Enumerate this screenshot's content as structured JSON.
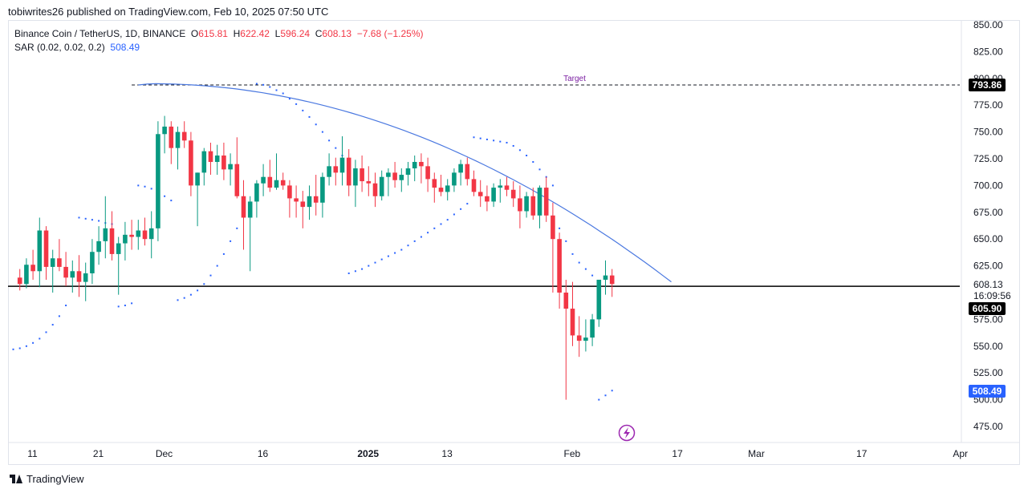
{
  "header": {
    "published": "tobiwrites26 published on TradingView.com, Feb 10, 2025 07:50 UTC"
  },
  "legend": {
    "symbol": "Binance Coin / TetherUS, 1D, BINANCE",
    "open_label": "O",
    "open": "615.81",
    "high_label": "H",
    "high": "622.42",
    "low_label": "L",
    "low": "596.24",
    "close_label": "C",
    "close": "608.13",
    "change": "−7.68 (−1.25%)",
    "indicator": "SAR (0.02, 0.02, 0.2)",
    "indicator_value": "508.49"
  },
  "footer": {
    "brand": "TradingView"
  },
  "colors": {
    "up": "#089981",
    "down": "#f23645",
    "sar": "#2962ff",
    "curve": "#4a78e0",
    "target": "#7b1fa2",
    "axis_text": "#131722"
  },
  "chart_data": {
    "type": "candlestick",
    "y_axis": {
      "ticks": [
        "850.00",
        "825.00",
        "800.00",
        "775.00",
        "750.00",
        "725.00",
        "700.00",
        "675.00",
        "650.00",
        "625.00",
        "575.00",
        "550.00",
        "525.00",
        "500.00",
        "475.00"
      ],
      "range": [
        460,
        860
      ]
    },
    "x_axis": {
      "labels": [
        {
          "text": "11",
          "day": 0
        },
        {
          "text": "21",
          "day": 10
        },
        {
          "text": "Dec",
          "day": 20
        },
        {
          "text": "16",
          "day": 35
        },
        {
          "text": "2025",
          "day": 51
        },
        {
          "text": "13",
          "day": 63
        },
        {
          "text": "Feb",
          "day": 82
        },
        {
          "text": "17",
          "day": 98
        },
        {
          "text": "Mar",
          "day": 110
        },
        {
          "text": "17",
          "day": 126
        },
        {
          "text": "Apr",
          "day": 141
        }
      ]
    },
    "price_labels": {
      "target_price": "793.86",
      "last_price": "608.13",
      "countdown": "16:09:56",
      "support_price": "605.90",
      "sar_price": "508.49"
    },
    "target": {
      "label": "Target",
      "price": 793.86,
      "from_day": 18
    },
    "support": {
      "price": 605.9
    },
    "candles": [
      [
        1,
        614,
        622,
        602,
        608
      ],
      [
        2,
        608,
        632,
        604,
        626
      ],
      [
        3,
        626,
        640,
        612,
        620
      ],
      [
        4,
        620,
        670,
        605,
        658
      ],
      [
        5,
        658,
        662,
        612,
        624
      ],
      [
        6,
        624,
        640,
        600,
        632
      ],
      [
        7,
        632,
        650,
        620,
        624
      ],
      [
        8,
        624,
        638,
        606,
        614
      ],
      [
        9,
        614,
        630,
        600,
        620
      ],
      [
        10,
        620,
        635,
        596,
        610
      ],
      [
        11,
        610,
        628,
        592,
        618
      ],
      [
        12,
        618,
        650,
        608,
        638
      ],
      [
        13,
        638,
        662,
        626,
        648
      ],
      [
        14,
        648,
        690,
        632,
        660
      ],
      [
        15,
        660,
        676,
        630,
        636
      ],
      [
        16,
        636,
        652,
        598,
        646
      ],
      [
        17,
        646,
        666,
        630,
        654
      ],
      [
        18,
        654,
        668,
        640,
        652
      ],
      [
        19,
        652,
        668,
        640,
        658
      ],
      [
        20,
        658,
        670,
        644,
        650
      ],
      [
        21,
        650,
        676,
        632,
        660
      ],
      [
        22,
        660,
        760,
        648,
        748
      ],
      [
        23,
        748,
        765,
        730,
        755
      ],
      [
        24,
        755,
        760,
        720,
        735
      ],
      [
        25,
        735,
        755,
        715,
        750
      ],
      [
        26,
        750,
        760,
        735,
        742
      ],
      [
        27,
        742,
        750,
        690,
        700
      ],
      [
        28,
        700,
        712,
        662,
        712
      ],
      [
        29,
        712,
        735,
        700,
        732
      ],
      [
        30,
        732,
        740,
        710,
        722
      ],
      [
        31,
        722,
        738,
        710,
        728
      ],
      [
        32,
        728,
        740,
        705,
        715
      ],
      [
        33,
        715,
        730,
        700,
        720
      ],
      [
        34,
        720,
        745,
        688,
        690
      ],
      [
        35,
        690,
        705,
        640,
        670
      ],
      [
        36,
        670,
        690,
        620,
        685
      ],
      [
        37,
        685,
        705,
        670,
        702
      ],
      [
        38,
        702,
        720,
        690,
        708
      ],
      [
        39,
        708,
        724,
        694,
        698
      ],
      [
        40,
        698,
        730,
        696,
        705
      ],
      [
        41,
        705,
        712,
        696,
        700
      ],
      [
        42,
        700,
        705,
        670,
        688
      ],
      [
        43,
        688,
        700,
        670,
        685
      ],
      [
        44,
        685,
        695,
        660,
        680
      ],
      [
        45,
        680,
        700,
        668,
        690
      ],
      [
        46,
        690,
        710,
        672,
        684
      ],
      [
        47,
        684,
        712,
        670,
        708
      ],
      [
        48,
        708,
        730,
        700,
        718
      ],
      [
        49,
        718,
        726,
        700,
        712
      ],
      [
        50,
        712,
        746,
        700,
        726
      ],
      [
        51,
        726,
        734,
        690,
        700
      ],
      [
        52,
        700,
        724,
        680,
        716
      ],
      [
        53,
        716,
        728,
        694,
        704
      ],
      [
        54,
        704,
        718,
        690,
        702
      ],
      [
        55,
        702,
        712,
        680,
        690
      ],
      [
        56,
        690,
        714,
        686,
        708
      ],
      [
        57,
        708,
        716,
        690,
        712
      ],
      [
        58,
        712,
        722,
        698,
        705
      ],
      [
        59,
        705,
        716,
        694,
        710
      ],
      [
        60,
        710,
        722,
        700,
        716
      ],
      [
        61,
        716,
        728,
        704,
        722
      ],
      [
        62,
        722,
        730,
        702,
        718
      ],
      [
        63,
        718,
        726,
        694,
        706
      ],
      [
        64,
        706,
        712,
        684,
        698
      ],
      [
        65,
        698,
        710,
        690,
        694
      ],
      [
        66,
        694,
        706,
        686,
        700
      ],
      [
        67,
        700,
        716,
        694,
        712
      ],
      [
        68,
        712,
        724,
        700,
        720
      ],
      [
        69,
        720,
        726,
        700,
        706
      ],
      [
        70,
        706,
        714,
        690,
        694
      ],
      [
        71,
        694,
        705,
        680,
        690
      ],
      [
        72,
        690,
        700,
        676,
        685
      ],
      [
        73,
        685,
        702,
        680,
        698
      ],
      [
        74,
        698,
        706,
        684,
        700
      ],
      [
        75,
        700,
        708,
        690,
        696
      ],
      [
        76,
        696,
        704,
        680,
        688
      ],
      [
        77,
        688,
        700,
        660,
        676
      ],
      [
        78,
        676,
        694,
        670,
        690
      ],
      [
        79,
        690,
        698,
        668,
        672
      ],
      [
        80,
        672,
        700,
        660,
        698
      ],
      [
        81,
        698,
        708,
        666,
        672
      ],
      [
        82,
        672,
        684,
        600,
        650
      ],
      [
        83,
        650,
        656,
        585,
        600
      ],
      [
        84,
        600,
        612,
        500,
        585
      ],
      [
        85,
        585,
        610,
        550,
        560
      ],
      [
        86,
        560,
        578,
        540,
        555
      ],
      [
        87,
        555,
        575,
        545,
        558
      ],
      [
        88,
        558,
        580,
        550,
        575
      ],
      [
        89,
        575,
        610,
        568,
        612
      ],
      [
        90,
        612,
        630,
        598,
        616
      ],
      [
        91,
        616,
        622,
        596,
        608
      ]
    ],
    "sar": [
      [
        0,
        547
      ],
      [
        1,
        548
      ],
      [
        2,
        550
      ],
      [
        3,
        553
      ],
      [
        4,
        557
      ],
      [
        5,
        563
      ],
      [
        6,
        570
      ],
      [
        7,
        578
      ],
      [
        8,
        588
      ],
      [
        10,
        670
      ],
      [
        11,
        669
      ],
      [
        12,
        668
      ],
      [
        13,
        667
      ],
      [
        14,
        665
      ],
      [
        15,
        664
      ],
      [
        16,
        587
      ],
      [
        17,
        588
      ],
      [
        18,
        590
      ],
      [
        19,
        700
      ],
      [
        20,
        699
      ],
      [
        21,
        697
      ],
      [
        22,
        694
      ],
      [
        23,
        690
      ],
      [
        24,
        686
      ],
      [
        25,
        593
      ],
      [
        26,
        595
      ],
      [
        27,
        598
      ],
      [
        28,
        602
      ],
      [
        29,
        608
      ],
      [
        30,
        616
      ],
      [
        31,
        625
      ],
      [
        32,
        636
      ],
      [
        33,
        648
      ],
      [
        34,
        660
      ],
      [
        35,
        672
      ],
      [
        36,
        682
      ],
      [
        37,
        795
      ],
      [
        38,
        794
      ],
      [
        39,
        792
      ],
      [
        40,
        789
      ],
      [
        41,
        786
      ],
      [
        42,
        781
      ],
      [
        43,
        776
      ],
      [
        44,
        770
      ],
      [
        45,
        764
      ],
      [
        46,
        757
      ],
      [
        47,
        750
      ],
      [
        48,
        742
      ],
      [
        49,
        735
      ],
      [
        50,
        728
      ],
      [
        51,
        618
      ],
      [
        52,
        620
      ],
      [
        53,
        622
      ],
      [
        54,
        625
      ],
      [
        55,
        628
      ],
      [
        56,
        631
      ],
      [
        57,
        634
      ],
      [
        58,
        637
      ],
      [
        59,
        640
      ],
      [
        60,
        644
      ],
      [
        61,
        648
      ],
      [
        62,
        652
      ],
      [
        63,
        656
      ],
      [
        64,
        660
      ],
      [
        65,
        664
      ],
      [
        66,
        668
      ],
      [
        67,
        673
      ],
      [
        68,
        678
      ],
      [
        69,
        683
      ],
      [
        70,
        745
      ],
      [
        71,
        744
      ],
      [
        72,
        743
      ],
      [
        73,
        742
      ],
      [
        74,
        741
      ],
      [
        75,
        740
      ],
      [
        76,
        737
      ],
      [
        77,
        733
      ],
      [
        78,
        728
      ],
      [
        79,
        722
      ],
      [
        80,
        715
      ],
      [
        81,
        708
      ],
      [
        82,
        700
      ],
      [
        83,
        660
      ],
      [
        84,
        648
      ],
      [
        85,
        636
      ],
      [
        86,
        628
      ],
      [
        87,
        622
      ],
      [
        88,
        616
      ],
      [
        89,
        500
      ],
      [
        90,
        504
      ],
      [
        91,
        508.49
      ]
    ],
    "curve": {
      "from_day": 19,
      "from_price": 793.86,
      "peak_day": 21,
      "to_day": 100,
      "to_price": 610
    }
  }
}
